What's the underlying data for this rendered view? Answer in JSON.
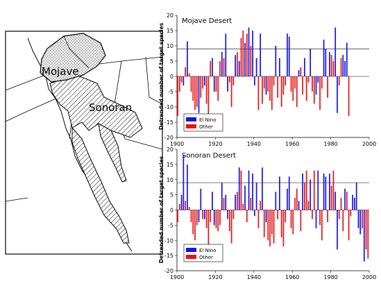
{
  "map": {
    "regions": [
      {
        "label": "Mojave"
      },
      {
        "label": "Sonoran"
      }
    ]
  },
  "colors": {
    "el_nino": "#1414e6",
    "other": "#e61414"
  },
  "chart_data": [
    {
      "type": "bar",
      "title": "Mojave Desert",
      "xlabel": "",
      "ylabel": "Detrended number of target species",
      "xlim": [
        1900,
        2000
      ],
      "ylim": [
        -20,
        20
      ],
      "x_ticks": [
        "1900",
        "1920",
        "1940",
        "1960",
        "1980",
        "2000"
      ],
      "y_ticks": [
        "-20",
        "-15",
        "-10",
        "-5",
        "0",
        "5",
        "10",
        "15",
        "20"
      ],
      "reference_lines": [
        9,
        0
      ],
      "legend": {
        "position": "bottom-left",
        "entries": [
          "El Nino",
          "Other"
        ]
      },
      "series": [
        {
          "name": "El Nino",
          "x": [
            1903,
            1905,
            1911,
            1914,
            1918,
            1919,
            1923,
            1925,
            1926,
            1930,
            1932,
            1935,
            1937,
            1939,
            1940,
            1941,
            1943,
            1946,
            1951,
            1953,
            1957,
            1958,
            1963,
            1966,
            1969,
            1972,
            1973,
            1976,
            1977,
            1979,
            1982,
            1983,
            1986,
            1987,
            1988
          ],
          "values": [
            -3,
            11.5,
            -12,
            -3,
            6,
            -5,
            8,
            14,
            -5,
            7,
            5,
            11,
            16,
            15,
            -3,
            6,
            14,
            -6,
            10,
            6,
            14,
            13,
            2,
            6,
            9,
            -6,
            -2,
            12,
            9,
            8,
            16,
            -12,
            7,
            5,
            11
          ]
        },
        {
          "name": "Other",
          "x": [
            1900,
            1901,
            1902,
            1904,
            1906,
            1907,
            1908,
            1909,
            1910,
            1912,
            1913,
            1915,
            1916,
            1917,
            1920,
            1921,
            1922,
            1924,
            1927,
            1928,
            1929,
            1931,
            1933,
            1934,
            1936,
            1938,
            1942,
            1944,
            1945,
            1947,
            1948,
            1949,
            1950,
            1952,
            1954,
            1955,
            1956,
            1959,
            1960,
            1961,
            1962,
            1964,
            1965,
            1967,
            1968,
            1970,
            1971,
            1974,
            1975,
            1978,
            1980,
            1981,
            1984,
            1985,
            1989
          ],
          "values": [
            -13,
            -5,
            -2,
            3,
            1,
            -5,
            -8,
            -11,
            -10,
            -7,
            -4,
            -9,
            -13,
            5,
            -5,
            -8,
            5,
            6,
            -2,
            -10,
            -3,
            8,
            12.5,
            15,
            14,
            10,
            -11,
            -9,
            -4,
            -5,
            -8,
            -11,
            -3,
            -7,
            -10,
            -6,
            -3,
            -5,
            -8,
            -4,
            -10,
            3,
            -6,
            -8,
            -2,
            -5,
            -9,
            -11,
            -4,
            -7,
            7,
            5,
            -3,
            6,
            -13
          ]
        }
      ]
    },
    {
      "type": "bar",
      "title": "Sonoran Desert",
      "xlabel": "",
      "ylabel": "Detrended number of target species",
      "xlim": [
        1900,
        2000
      ],
      "ylim": [
        -20,
        20
      ],
      "x_ticks": [
        "1900",
        "1920",
        "1940",
        "1960",
        "1980",
        "2000"
      ],
      "y_ticks": [
        "-20",
        "-15",
        "-10",
        "-5",
        "0",
        "5",
        "10",
        "15",
        "20"
      ],
      "reference_lines": [
        9,
        0
      ],
      "legend": {
        "position": "bottom-left",
        "entries": [
          "El Nino",
          "Other"
        ]
      },
      "series": [
        {
          "name": "El Nino",
          "x": [
            1902,
            1903,
            1905,
            1911,
            1912,
            1914,
            1918,
            1919,
            1923,
            1925,
            1926,
            1930,
            1932,
            1935,
            1937,
            1939,
            1940,
            1941,
            1944,
            1946,
            1951,
            1953,
            1957,
            1958,
            1963,
            1965,
            1969,
            1972,
            1973,
            1976,
            1977,
            1979,
            1982,
            1983,
            1987,
            1991,
            1992,
            1993,
            1994,
            1995,
            1997
          ],
          "values": [
            5,
            18,
            15,
            -4,
            7,
            -3,
            6,
            -5,
            9,
            5,
            -3,
            5,
            14,
            8,
            13,
            12,
            -2,
            9,
            14,
            -4,
            6,
            11,
            7,
            11,
            3,
            12,
            10,
            -6,
            13,
            12,
            11,
            12,
            6,
            -13,
            7,
            5,
            4,
            9,
            -6,
            -8,
            -17
          ]
        },
        {
          "name": "Other",
          "x": [
            1900,
            1901,
            1904,
            1906,
            1907,
            1908,
            1909,
            1910,
            1913,
            1915,
            1916,
            1917,
            1920,
            1921,
            1922,
            1924,
            1927,
            1928,
            1929,
            1931,
            1933,
            1934,
            1936,
            1938,
            1942,
            1943,
            1945,
            1947,
            1948,
            1949,
            1950,
            1952,
            1954,
            1955,
            1956,
            1959,
            1960,
            1961,
            1962,
            1964,
            1966,
            1967,
            1968,
            1970,
            1971,
            1974,
            1975,
            1978,
            1980,
            1981,
            1984,
            1985,
            1986,
            1988,
            1989,
            1990,
            1996,
            1998,
            1999
          ],
          "values": [
            -4,
            2,
            3,
            1,
            -4,
            -8,
            -10,
            -5,
            -3,
            -6,
            -12,
            -4,
            -6,
            -7,
            -5,
            4,
            -7,
            -11,
            -3,
            6,
            13,
            2,
            -4,
            4,
            -6,
            3,
            -9,
            -10,
            -12,
            -8,
            -11,
            -3,
            -9,
            -12,
            -4,
            -6,
            -8,
            4,
            7,
            -7,
            9,
            13,
            3,
            -3,
            13,
            -5,
            -10,
            -4,
            8,
            13,
            -3,
            4,
            -7,
            6,
            -10,
            -2,
            -6,
            -13,
            -16
          ]
        }
      ]
    }
  ]
}
